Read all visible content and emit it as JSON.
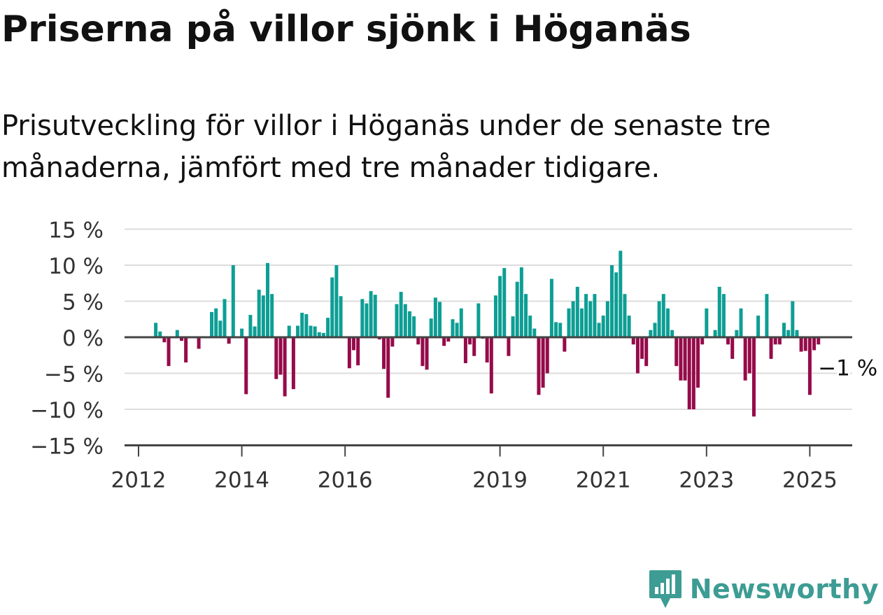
{
  "header": {
    "title": "Priserna på villor sjönk i Höganäs",
    "subtitle": "Prisutveckling för villor i Höganäs under de senaste tre månaderna, jämfört med tre månader tidigare."
  },
  "brand": {
    "name": "Newsworthy",
    "icon": "newsworthy-logo-icon",
    "color": "#3d9c93"
  },
  "colors": {
    "positive": "#0d9e94",
    "negative": "#950b4a",
    "grid": "#dddddd",
    "axis": "#444444"
  },
  "chart_data": {
    "type": "bar",
    "title": "Priserna på villor sjönk i Höganäs",
    "subtitle": "Prisutveckling för villor i Höganäs under de senaste tre månaderna, jämfört med tre månader tidigare.",
    "ylim": [
      -15,
      15
    ],
    "yticks": [
      15,
      10,
      5,
      0,
      -5,
      -10,
      -15
    ],
    "ytick_labels": [
      "15 %",
      "10 %",
      "5 %",
      "0 %",
      "−5 %",
      "−10 %",
      "−15 %"
    ],
    "xticks": [
      {
        "label": "2012",
        "date": "2012-01"
      },
      {
        "label": "2014",
        "date": "2014-01"
      },
      {
        "label": "2016",
        "date": "2016-01"
      },
      {
        "label": "2019",
        "date": "2019-01"
      },
      {
        "label": "2021",
        "date": "2021-01"
      },
      {
        "label": "2023",
        "date": "2023-01"
      },
      {
        "label": "2025",
        "date": "2025-01"
      }
    ],
    "grid": true,
    "annotation": {
      "text": "−1 %",
      "date": "2025-03",
      "value": -1
    },
    "series": [
      {
        "points": [
          [
            "2012-05",
            2
          ],
          [
            "2012-06",
            0.8
          ],
          [
            "2012-07",
            -0.7
          ],
          [
            "2012-08",
            -4
          ],
          [
            "2012-10",
            1
          ],
          [
            "2012-11",
            -0.5
          ],
          [
            "2012-12",
            -3.5
          ],
          [
            "2013-03",
            -1.6
          ],
          [
            "2013-06",
            3.5
          ],
          [
            "2013-07",
            4
          ],
          [
            "2013-08",
            2.3
          ],
          [
            "2013-09",
            5.3
          ],
          [
            "2013-10",
            -0.9
          ],
          [
            "2013-11",
            10
          ],
          [
            "2014-01",
            1.2
          ],
          [
            "2014-02",
            -7.9
          ],
          [
            "2014-03",
            3.1
          ],
          [
            "2014-04",
            1.5
          ],
          [
            "2014-05",
            6.6
          ],
          [
            "2014-06",
            5.8
          ],
          [
            "2014-07",
            10.3
          ],
          [
            "2014-08",
            6
          ],
          [
            "2014-09",
            -5.8
          ],
          [
            "2014-10",
            -5.2
          ],
          [
            "2014-11",
            -8.2
          ],
          [
            "2014-12",
            1.6
          ],
          [
            "2015-01",
            -7.2
          ],
          [
            "2015-02",
            1.6
          ],
          [
            "2015-03",
            3.4
          ],
          [
            "2015-04",
            3.2
          ],
          [
            "2015-05",
            1.6
          ],
          [
            "2015-06",
            1.5
          ],
          [
            "2015-07",
            0.7
          ],
          [
            "2015-08",
            0.6
          ],
          [
            "2015-09",
            2.7
          ],
          [
            "2015-10",
            8.3
          ],
          [
            "2015-11",
            10
          ],
          [
            "2015-12",
            5.7
          ],
          [
            "2016-02",
            -4.3
          ],
          [
            "2016-03",
            -1.8
          ],
          [
            "2016-04",
            -3.9
          ],
          [
            "2016-05",
            5.3
          ],
          [
            "2016-06",
            4.7
          ],
          [
            "2016-07",
            6.4
          ],
          [
            "2016-08",
            5.9
          ],
          [
            "2016-09",
            -0.3
          ],
          [
            "2016-10",
            -4.4
          ],
          [
            "2016-11",
            -8.4
          ],
          [
            "2016-12",
            -1.3
          ],
          [
            "2017-01",
            4.6
          ],
          [
            "2017-02",
            6.3
          ],
          [
            "2017-03",
            4.6
          ],
          [
            "2017-04",
            3.6
          ],
          [
            "2017-05",
            2.9
          ],
          [
            "2017-06",
            -1
          ],
          [
            "2017-07",
            -4
          ],
          [
            "2017-08",
            -4.5
          ],
          [
            "2017-09",
            2.6
          ],
          [
            "2017-10",
            5.5
          ],
          [
            "2017-11",
            4.9
          ],
          [
            "2017-12",
            -1.2
          ],
          [
            "2018-01",
            -0.6
          ],
          [
            "2018-02",
            2.5
          ],
          [
            "2018-03",
            2
          ],
          [
            "2018-04",
            4
          ],
          [
            "2018-05",
            -3.6
          ],
          [
            "2018-06",
            -1
          ],
          [
            "2018-07",
            -2.6
          ],
          [
            "2018-08",
            4.7
          ],
          [
            "2018-09",
            -0.2
          ],
          [
            "2018-10",
            -3.5
          ],
          [
            "2018-11",
            -7.8
          ],
          [
            "2018-12",
            5.8
          ],
          [
            "2019-01",
            8.5
          ],
          [
            "2019-02",
            9.6
          ],
          [
            "2019-03",
            -2.6
          ],
          [
            "2019-04",
            2.9
          ],
          [
            "2019-05",
            7.7
          ],
          [
            "2019-06",
            9.7
          ],
          [
            "2019-07",
            6
          ],
          [
            "2019-08",
            3
          ],
          [
            "2019-09",
            1.2
          ],
          [
            "2019-10",
            -8
          ],
          [
            "2019-11",
            -7
          ],
          [
            "2019-12",
            -5
          ],
          [
            "2020-01",
            8.1
          ],
          [
            "2020-02",
            2.1
          ],
          [
            "2020-03",
            2
          ],
          [
            "2020-04",
            -2
          ],
          [
            "2020-05",
            4
          ],
          [
            "2020-06",
            5
          ],
          [
            "2020-07",
            7
          ],
          [
            "2020-08",
            4
          ],
          [
            "2020-09",
            6
          ],
          [
            "2020-10",
            5
          ],
          [
            "2020-11",
            6
          ],
          [
            "2020-12",
            2
          ],
          [
            "2021-01",
            3
          ],
          [
            "2021-02",
            5
          ],
          [
            "2021-03",
            10
          ],
          [
            "2021-04",
            9
          ],
          [
            "2021-05",
            12
          ],
          [
            "2021-06",
            6
          ],
          [
            "2021-07",
            3
          ],
          [
            "2021-08",
            -1
          ],
          [
            "2021-09",
            -5
          ],
          [
            "2021-10",
            -3
          ],
          [
            "2021-11",
            -4
          ],
          [
            "2021-12",
            1
          ],
          [
            "2022-01",
            2
          ],
          [
            "2022-02",
            5
          ],
          [
            "2022-03",
            6
          ],
          [
            "2022-04",
            4
          ],
          [
            "2022-05",
            1
          ],
          [
            "2022-06",
            -4
          ],
          [
            "2022-07",
            -6
          ],
          [
            "2022-08",
            -6
          ],
          [
            "2022-09",
            -10
          ],
          [
            "2022-10",
            -10
          ],
          [
            "2022-11",
            -7
          ],
          [
            "2022-12",
            -1
          ],
          [
            "2023-01",
            4
          ],
          [
            "2023-02",
            0
          ],
          [
            "2023-03",
            1
          ],
          [
            "2023-04",
            7
          ],
          [
            "2023-05",
            6
          ],
          [
            "2023-06",
            -1
          ],
          [
            "2023-07",
            -3
          ],
          [
            "2023-08",
            1
          ],
          [
            "2023-09",
            4
          ],
          [
            "2023-10",
            -6
          ],
          [
            "2023-11",
            -5
          ],
          [
            "2023-12",
            -11
          ],
          [
            "2024-01",
            3
          ],
          [
            "2024-02",
            0
          ],
          [
            "2024-03",
            6
          ],
          [
            "2024-04",
            -3
          ],
          [
            "2024-05",
            -1
          ],
          [
            "2024-06",
            -1
          ],
          [
            "2024-07",
            2
          ],
          [
            "2024-08",
            1
          ],
          [
            "2024-09",
            5
          ],
          [
            "2024-10",
            1
          ],
          [
            "2024-11",
            -2
          ],
          [
            "2024-12",
            -1.9
          ],
          [
            "2025-01",
            -8
          ],
          [
            "2025-02",
            -1.8
          ],
          [
            "2025-03",
            -1
          ]
        ]
      }
    ]
  }
}
